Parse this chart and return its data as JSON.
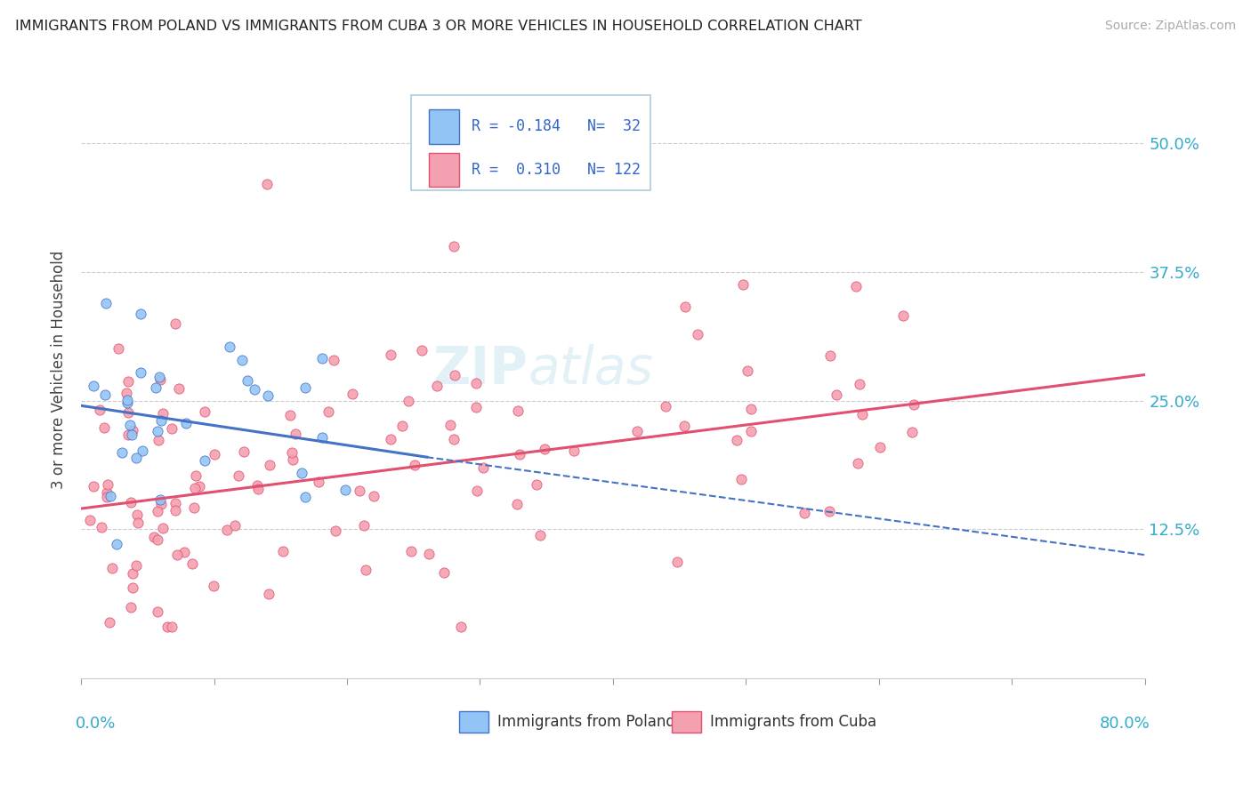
{
  "title": "IMMIGRANTS FROM POLAND VS IMMIGRANTS FROM CUBA 3 OR MORE VEHICLES IN HOUSEHOLD CORRELATION CHART",
  "source": "Source: ZipAtlas.com",
  "ylabel": "3 or more Vehicles in Household",
  "ytick_values": [
    0.125,
    0.25,
    0.375,
    0.5
  ],
  "xrange": [
    0.0,
    0.8
  ],
  "yrange": [
    -0.02,
    0.58
  ],
  "legend_R_poland": "-0.184",
  "legend_N_poland": "32",
  "legend_R_cuba": "0.310",
  "legend_N_cuba": "122",
  "color_poland": "#92c5f5",
  "color_cuba": "#f5a0b0",
  "color_poland_line": "#4472c4",
  "color_cuba_line": "#e05070",
  "poland_line_start_x": 0.0,
  "poland_line_start_y": 0.245,
  "poland_line_solid_end_x": 0.26,
  "poland_line_solid_end_y": 0.195,
  "poland_line_dash_end_x": 0.8,
  "poland_line_dash_end_y": 0.1,
  "cuba_line_start_x": 0.0,
  "cuba_line_start_y": 0.145,
  "cuba_line_end_x": 0.8,
  "cuba_line_end_y": 0.275
}
